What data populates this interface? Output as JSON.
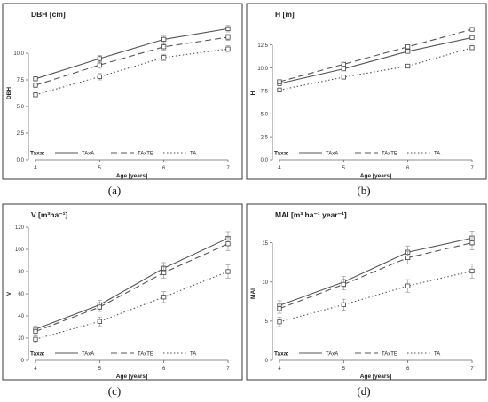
{
  "chart_data": [
    {
      "type": "line",
      "caption": "(a)",
      "title": "DBH [cm]",
      "xlabel": "Age [years]",
      "ylabel": "DBH",
      "x": [
        4,
        5,
        6,
        7
      ],
      "xlim": [
        4,
        7
      ],
      "ylim": [
        0,
        12.5
      ],
      "yticks": [
        0.0,
        2.5,
        5.0,
        7.5,
        10.0
      ],
      "yticklabels": [
        "0.0",
        "2.5",
        "5.0",
        "7.5",
        "10.0"
      ],
      "legend_title": "Taxa:",
      "legend_position": "bottom-inside",
      "series": [
        {
          "name": "TAxA",
          "style": "solid",
          "values": [
            7.6,
            9.5,
            11.3,
            12.3
          ],
          "err": [
            0.2,
            0.3,
            0.3,
            0.3
          ]
        },
        {
          "name": "TAxTE",
          "style": "dashed",
          "values": [
            7.0,
            8.9,
            10.6,
            11.5
          ],
          "err": [
            0.2,
            0.3,
            0.3,
            0.3
          ]
        },
        {
          "name": "TA",
          "style": "dotted",
          "values": [
            6.1,
            7.8,
            9.6,
            10.4
          ],
          "err": [
            0.2,
            0.3,
            0.3,
            0.3
          ]
        }
      ]
    },
    {
      "type": "line",
      "caption": "(b)",
      "title": "H [m]",
      "xlabel": "Age [years]",
      "ylabel": "H",
      "x": [
        4,
        5,
        6,
        7
      ],
      "xlim": [
        4,
        7
      ],
      "ylim": [
        0,
        14.5
      ],
      "yticks": [
        0.0,
        2.5,
        5.0,
        7.5,
        10.0,
        12.5
      ],
      "yticklabels": [
        "0.0",
        "2.5",
        "5.0",
        "7.5",
        "10.0",
        "12.5"
      ],
      "legend_title": "Taxa:",
      "legend_position": "bottom-inside",
      "series": [
        {
          "name": "TAxA",
          "style": "solid",
          "values": [
            8.3,
            9.9,
            11.8,
            13.3
          ],
          "err": [
            0.15,
            0.2,
            0.2,
            0.2
          ]
        },
        {
          "name": "TAxTE",
          "style": "dashed",
          "values": [
            8.5,
            10.4,
            12.3,
            14.2
          ],
          "err": [
            0.15,
            0.2,
            0.2,
            0.2
          ]
        },
        {
          "name": "TA",
          "style": "dotted",
          "values": [
            7.6,
            9.0,
            10.2,
            12.2
          ],
          "err": [
            0.15,
            0.2,
            0.2,
            0.2
          ]
        }
      ]
    },
    {
      "type": "line",
      "caption": "(c)",
      "title": "V [m³ha⁻¹]",
      "xlabel": "Age [years]",
      "ylabel": "V",
      "x": [
        4,
        5,
        6,
        7
      ],
      "xlim": [
        4,
        7
      ],
      "ylim": [
        0,
        120
      ],
      "yticks": [
        0,
        20,
        40,
        60,
        80,
        100,
        120
      ],
      "yticklabels": [
        "0",
        "20",
        "40",
        "60",
        "80",
        "100",
        "120"
      ],
      "legend_title": "Taxa:",
      "legend_position": "bottom-inside",
      "series": [
        {
          "name": "TAxA",
          "style": "solid",
          "values": [
            28,
            50,
            83,
            110
          ],
          "err": [
            3,
            4,
            5,
            6
          ]
        },
        {
          "name": "TAxTE",
          "style": "dashed",
          "values": [
            26,
            48,
            79,
            105
          ],
          "err": [
            3,
            4,
            5,
            6
          ]
        },
        {
          "name": "TA",
          "style": "dotted",
          "values": [
            19,
            35,
            57,
            80
          ],
          "err": [
            3,
            4,
            5,
            6
          ]
        }
      ]
    },
    {
      "type": "line",
      "caption": "(d)",
      "title": "MAI [m³ ha⁻¹ year⁻¹]",
      "xlabel": "Age [years]",
      "ylabel": "MAI",
      "x": [
        4,
        5,
        6,
        7
      ],
      "xlim": [
        4,
        7
      ],
      "ylim": [
        0,
        17
      ],
      "yticks": [
        0,
        5,
        10,
        15
      ],
      "yticklabels": [
        "0",
        "5",
        "10",
        "15"
      ],
      "legend_title": "Taxa:",
      "legend_position": "bottom-inside",
      "series": [
        {
          "name": "TAxA",
          "style": "solid",
          "values": [
            7.0,
            10.0,
            13.8,
            15.6
          ],
          "err": [
            0.6,
            0.7,
            0.8,
            0.9
          ]
        },
        {
          "name": "TAxTE",
          "style": "dashed",
          "values": [
            6.6,
            9.7,
            13.1,
            15.0
          ],
          "err": [
            0.6,
            0.7,
            0.8,
            0.9
          ]
        },
        {
          "name": "TA",
          "style": "dotted",
          "values": [
            4.9,
            7.1,
            9.5,
            11.4
          ],
          "err": [
            0.6,
            0.7,
            0.8,
            0.9
          ]
        }
      ]
    }
  ],
  "colors": {
    "line": "#555555",
    "marker": "#444444",
    "error_bar": "#9a9a9a",
    "panel_border": "#3a3a3a",
    "text": "#222222"
  }
}
